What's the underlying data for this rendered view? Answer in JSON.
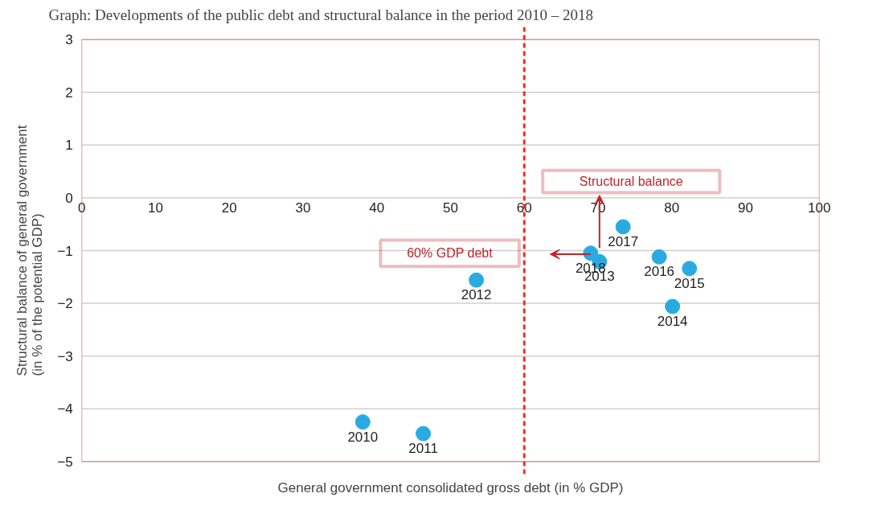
{
  "chart_data": {
    "type": "scatter",
    "title": "Graph: Developments of the public debt and structural balance in the period 2010 – 2018",
    "xlabel": "General government consolidated gross debt (in % GDP)",
    "ylabel": "Structural balance of general government (in % of the potential GDP)",
    "x": [
      38.1,
      46.3,
      53.5,
      70.2,
      80.1,
      82.4,
      78.3,
      73.4,
      69.0
    ],
    "series": [
      {
        "color": "#29abe2",
        "values": [
          -4.25,
          -4.47,
          -1.56,
          -1.21,
          -2.06,
          -1.34,
          -1.12,
          -0.55,
          -1.05
        ]
      }
    ],
    "annotations": [
      {
        "text": "2010",
        "x": 38.1,
        "y": -4.25
      },
      {
        "text": "2011",
        "x": 46.3,
        "y": -4.47
      },
      {
        "text": "2012",
        "x": 53.5,
        "y": -1.56
      },
      {
        "text": "2013",
        "x": 70.2,
        "y": -1.21
      },
      {
        "text": "2014",
        "x": 80.1,
        "y": -2.06
      },
      {
        "text": "2015",
        "x": 82.4,
        "y": -1.34
      },
      {
        "text": "2016",
        "x": 78.3,
        "y": -1.12
      },
      {
        "text": "2017",
        "x": 73.4,
        "y": -0.55
      },
      {
        "text": "2018",
        "x": 69.0,
        "y": -1.05
      },
      "Structural balance",
      "60% GDP debt"
    ],
    "ref_lines": [
      {
        "axis": "x",
        "value": 60,
        "color": "#e8302a",
        "line_style": "dashed"
      }
    ],
    "xlim": [
      0,
      100
    ],
    "xticks": [
      0,
      10,
      20,
      30,
      40,
      50,
      60,
      70,
      80,
      90,
      100
    ],
    "ylim": [
      -5,
      3
    ],
    "yticks": [
      -5,
      -4,
      -3,
      -2,
      -1,
      0,
      1,
      2,
      3
    ],
    "grid": "y",
    "marker": "circle"
  }
}
